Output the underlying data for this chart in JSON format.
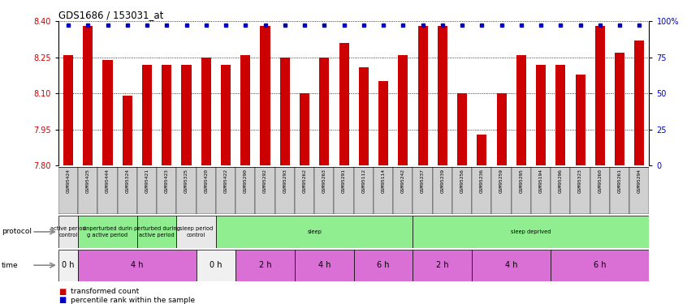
{
  "title": "GDS1686 / 153031_at",
  "samples": [
    "GSM95424",
    "GSM95425",
    "GSM95444",
    "GSM95324",
    "GSM95421",
    "GSM95423",
    "GSM95325",
    "GSM95420",
    "GSM95422",
    "GSM95290",
    "GSM95292",
    "GSM95293",
    "GSM95262",
    "GSM95263",
    "GSM95291",
    "GSM95112",
    "GSM95114",
    "GSM95242",
    "GSM95237",
    "GSM95239",
    "GSM95256",
    "GSM95236",
    "GSM95259",
    "GSM95295",
    "GSM95194",
    "GSM95296",
    "GSM95323",
    "GSM95260",
    "GSM95261",
    "GSM95294"
  ],
  "bar_values": [
    8.26,
    8.38,
    8.24,
    8.09,
    8.22,
    8.22,
    8.22,
    8.25,
    8.22,
    8.26,
    8.38,
    8.25,
    8.1,
    8.25,
    8.31,
    8.21,
    8.15,
    8.26,
    8.38,
    8.38,
    8.1,
    7.93,
    8.1,
    8.26,
    8.22,
    8.22,
    8.18,
    8.38,
    8.27,
    8.32
  ],
  "percentile_values": [
    8.385,
    8.385,
    8.385,
    8.385,
    8.385,
    8.385,
    8.385,
    8.385,
    8.385,
    8.385,
    8.385,
    8.385,
    8.385,
    8.385,
    8.385,
    8.385,
    8.385,
    8.385,
    8.385,
    8.385,
    8.385,
    8.385,
    8.385,
    8.385,
    8.385,
    8.385,
    8.385,
    8.385,
    8.385,
    8.385
  ],
  "ylim_left": [
    7.8,
    8.4
  ],
  "ylim_right": [
    0,
    100
  ],
  "yticks_left": [
    7.8,
    7.95,
    8.1,
    8.25,
    8.4
  ],
  "yticks_right": [
    0,
    25,
    50,
    75,
    100
  ],
  "bar_color": "#cc0000",
  "percentile_color": "#0000cc",
  "label_bg_color": "#c8c8c8",
  "protocol_groups": [
    {
      "label": "active period\ncontrol",
      "start": 0,
      "end": 1,
      "color": "#e8e8e8"
    },
    {
      "label": "unperturbed durin\ng active period",
      "start": 1,
      "end": 4,
      "color": "#90ee90"
    },
    {
      "label": "perturbed during\nactive period",
      "start": 4,
      "end": 6,
      "color": "#90ee90"
    },
    {
      "label": "sleep period\ncontrol",
      "start": 6,
      "end": 8,
      "color": "#e8e8e8"
    },
    {
      "label": "sleep",
      "start": 8,
      "end": 18,
      "color": "#90ee90"
    },
    {
      "label": "sleep deprived",
      "start": 18,
      "end": 30,
      "color": "#90ee90"
    }
  ],
  "time_groups": [
    {
      "label": "0 h",
      "start": 0,
      "end": 1,
      "color": "#f0f0f0"
    },
    {
      "label": "4 h",
      "start": 1,
      "end": 7,
      "color": "#da70d6"
    },
    {
      "label": "0 h",
      "start": 7,
      "end": 9,
      "color": "#f0f0f0"
    },
    {
      "label": "2 h",
      "start": 9,
      "end": 12,
      "color": "#da70d6"
    },
    {
      "label": "4 h",
      "start": 12,
      "end": 15,
      "color": "#da70d6"
    },
    {
      "label": "6 h",
      "start": 15,
      "end": 18,
      "color": "#da70d6"
    },
    {
      "label": "2 h",
      "start": 18,
      "end": 21,
      "color": "#da70d6"
    },
    {
      "label": "4 h",
      "start": 21,
      "end": 25,
      "color": "#da70d6"
    },
    {
      "label": "6 h",
      "start": 25,
      "end": 30,
      "color": "#da70d6"
    }
  ],
  "n_samples": 30
}
